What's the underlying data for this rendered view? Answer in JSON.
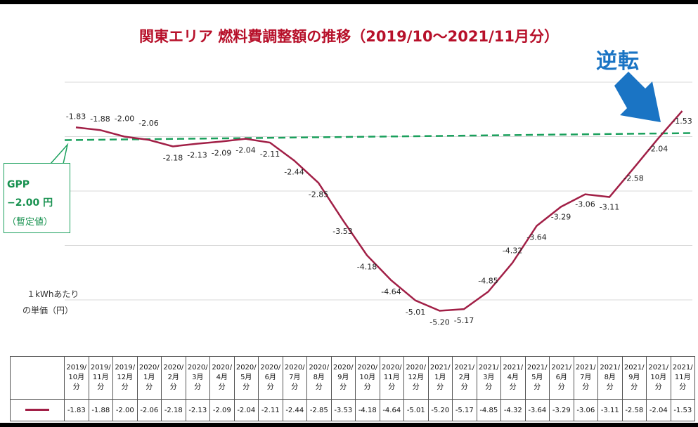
{
  "title": "関東エリア 燃料費調整額の推移（2019/10～2021/11月分）",
  "annotation": {
    "reverse_label": "逆転",
    "gpp_line1": "GPP",
    "gpp_line2": "−2.00 円",
    "gpp_line3": "（暫定値）",
    "unit_line1": "１kWhあたり",
    "unit_line2": "の単価（円）"
  },
  "colors": {
    "title": "#b7102a",
    "series": "#a11f46",
    "gpp": "#1aa05c",
    "reverse": "#1a74c4"
  },
  "chart_data": {
    "type": "line",
    "title": "関東エリア 燃料費調整額の推移（2019/10～2021/11月分）",
    "ylabel": "１kWhあたりの単価（円）",
    "ylim": [
      -6.0,
      -1.0
    ],
    "categories": [
      [
        "2019/",
        "10月",
        "分"
      ],
      [
        "2019/",
        "11月",
        "分"
      ],
      [
        "2019/",
        "12月",
        "分"
      ],
      [
        "2020/",
        "1月",
        "分"
      ],
      [
        "2020/",
        "2月",
        "分"
      ],
      [
        "2020/",
        "3月",
        "分"
      ],
      [
        "2020/",
        "4月",
        "分"
      ],
      [
        "2020/",
        "5月",
        "分"
      ],
      [
        "2020/",
        "6月",
        "分"
      ],
      [
        "2020/",
        "7月",
        "分"
      ],
      [
        "2020/",
        "8月",
        "分"
      ],
      [
        "2020/",
        "9月",
        "分"
      ],
      [
        "2020/",
        "10月",
        "分"
      ],
      [
        "2020/",
        "11月",
        "分"
      ],
      [
        "2020/",
        "12月",
        "分"
      ],
      [
        "2021/",
        "1月",
        "分"
      ],
      [
        "2021/",
        "2月",
        "分"
      ],
      [
        "2021/",
        "3月",
        "分"
      ],
      [
        "2021/",
        "4月",
        "分"
      ],
      [
        "2021/",
        "5月",
        "分"
      ],
      [
        "2021/",
        "6月",
        "分"
      ],
      [
        "2021/",
        "7月",
        "分"
      ],
      [
        "2021/",
        "8月",
        "分"
      ],
      [
        "2021/",
        "9月",
        "分"
      ],
      [
        "2021/",
        "10月",
        "分"
      ],
      [
        "2021/",
        "11月",
        "分"
      ]
    ],
    "series": [
      {
        "name": "燃料費調整額",
        "values": [
          -1.83,
          -1.88,
          -2.0,
          -2.06,
          -2.18,
          -2.13,
          -2.09,
          -2.04,
          -2.11,
          -2.44,
          -2.85,
          -3.53,
          -4.18,
          -4.64,
          -5.01,
          -5.2,
          -5.17,
          -4.85,
          -4.32,
          -3.64,
          -3.29,
          -3.06,
          -3.11,
          -2.58,
          -2.04,
          -1.53
        ],
        "labels": [
          "-1.83",
          "-1.88",
          "-2.00",
          "-2.06",
          "-2.18",
          "-2.13",
          "-2.09",
          "-2.04",
          "-2.11",
          "-2.44",
          "-2.85",
          "-3.53",
          "-4.18",
          "-4.64",
          "-5.01",
          "-5.20",
          "-5.17",
          "-4.85",
          "-4.32",
          "-3.64",
          "-3.29",
          "-3.06",
          "-3.11",
          "-2.58",
          "-2.04",
          "-1.53"
        ]
      }
    ],
    "reference_line": {
      "name": "GPP",
      "value": -2.0
    },
    "grid": true,
    "legend": "data-table"
  }
}
